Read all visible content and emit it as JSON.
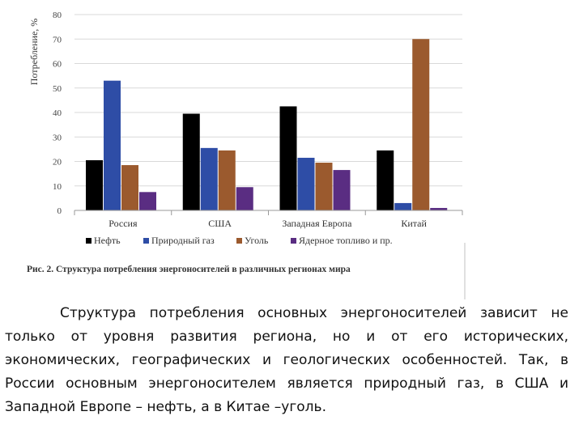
{
  "chart_data": {
    "type": "bar",
    "ylabel": "Потребление, %",
    "ylim": [
      0,
      80
    ],
    "yticks": [
      0,
      10,
      20,
      30,
      40,
      50,
      60,
      70,
      80
    ],
    "grid": true,
    "legend_position": "bottom",
    "categories": [
      "Россия",
      "США",
      "Западная Европа",
      "Китай"
    ],
    "series": [
      {
        "name": "Нефть",
        "color": "#000000",
        "values": [
          20.5,
          39.5,
          42.5,
          24.5
        ]
      },
      {
        "name": "Природный газ",
        "color": "#2e4da6",
        "values": [
          53,
          25.5,
          21.5,
          3
        ]
      },
      {
        "name": "Уголь",
        "color": "#9b5a2e",
        "values": [
          18.5,
          24.5,
          19.5,
          70
        ]
      },
      {
        "name": "Ядерное топливо и пр.",
        "color": "#5a2d82",
        "values": [
          7.5,
          9.5,
          16.5,
          1
        ]
      }
    ]
  },
  "caption": "Рис. 2. Структура потребления энергоносителей в различных регионах мира",
  "paragraph": "Структура потребления основных энергоносителей зависит не только от уровня развития региона, но и от его исторических, экономических, географических и геологических особенностей. Так, в России основным энергоносителем является природный газ, в США и Западной Европе – нефть, а в Китае –уголь."
}
